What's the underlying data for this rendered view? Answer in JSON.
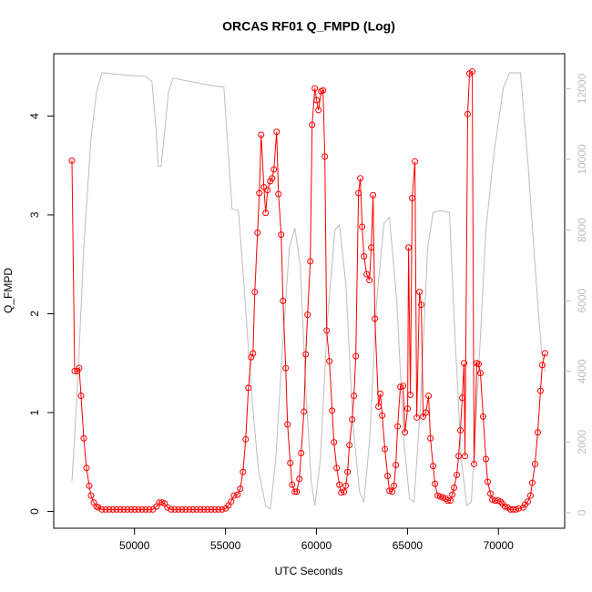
{
  "chart_data": {
    "type": "line",
    "title": "ORCAS RF01 Q_FMPD (Log)",
    "xlabel": "UTC Seconds",
    "ylabel": "Q_FMPD",
    "xlim": [
      45560,
      73640
    ],
    "ylim": [
      -0.17,
      4.63
    ],
    "y2lim": [
      -440,
      12990
    ],
    "xticks": [
      50000,
      55000,
      60000,
      65000,
      70000
    ],
    "yticks": [
      0,
      1,
      2,
      3,
      4
    ],
    "y2ticks": [
      0,
      2000,
      4000,
      6000,
      8000,
      10000,
      12000
    ],
    "y2tick_color": "#bebebe",
    "series": [
      {
        "color": "#bebebe",
        "axis": "y2",
        "markers": false,
        "x": [
          46560,
          46860,
          47210,
          47610,
          47910,
          48210,
          48860,
          49610,
          50610,
          50960,
          51160,
          51310,
          51460,
          51660,
          51860,
          52110,
          53110,
          54110,
          54910,
          55110,
          55360,
          55710,
          56010,
          56410,
          56810,
          57210,
          57460,
          57760,
          58110,
          58510,
          58810,
          59110,
          59410,
          59710,
          59910,
          60210,
          60610,
          61010,
          61260,
          61610,
          62010,
          62360,
          62610,
          62910,
          63310,
          63710,
          64010,
          64410,
          64810,
          65110,
          65360,
          65710,
          66110,
          66410,
          66810,
          67310,
          67610,
          67960,
          68260,
          68510,
          68910,
          69310,
          69760,
          70260,
          70610,
          71210,
          71610,
          72010,
          72360,
          72560
        ],
        "values": [
          900,
          3500,
          7500,
          10600,
          11900,
          12450,
          12420,
          12380,
          12350,
          12200,
          11000,
          9800,
          9800,
          10800,
          11900,
          12300,
          12200,
          12100,
          12050,
          10500,
          8600,
          8550,
          6500,
          3500,
          1200,
          200,
          100,
          1500,
          4500,
          7500,
          8050,
          7000,
          3500,
          900,
          200,
          1500,
          5500,
          8000,
          8150,
          6500,
          2500,
          600,
          300,
          2000,
          6000,
          8200,
          8350,
          6000,
          2000,
          400,
          300,
          3000,
          7500,
          8500,
          8550,
          8500,
          5000,
          1500,
          200,
          300,
          4000,
          8000,
          10200,
          12000,
          12450,
          12450,
          10000,
          7000,
          4600,
          4000
        ]
      },
      {
        "color": "#ff0000",
        "axis": "y",
        "markers": true,
        "x": [
          46560,
          46710,
          46860,
          46960,
          47060,
          47210,
          47360,
          47510,
          47610,
          47760,
          47910,
          48010,
          48210,
          48410,
          48610,
          48810,
          49010,
          49210,
          49410,
          49610,
          49810,
          50010,
          50210,
          50410,
          50610,
          50810,
          51010,
          51210,
          51360,
          51510,
          51660,
          51810,
          52010,
          52210,
          52410,
          52610,
          52810,
          53010,
          53210,
          53410,
          53610,
          53810,
          54010,
          54210,
          54410,
          54610,
          54810,
          55010,
          55160,
          55310,
          55460,
          55660,
          55810,
          55960,
          56110,
          56260,
          56410,
          56510,
          56610,
          56760,
          56860,
          56960,
          57110,
          57210,
          57310,
          57460,
          57560,
          57660,
          57810,
          57910,
          58060,
          58160,
          58310,
          58410,
          58560,
          58660,
          58810,
          58910,
          59060,
          59160,
          59310,
          59410,
          59510,
          59660,
          59760,
          59910,
          60010,
          60110,
          60260,
          60360,
          60460,
          60560,
          60710,
          60860,
          60960,
          61110,
          61260,
          61360,
          61510,
          61610,
          61710,
          61810,
          61960,
          62060,
          62160,
          62310,
          62410,
          62510,
          62610,
          62760,
          62910,
          63010,
          63110,
          63210,
          63410,
          63510,
          63610,
          63760,
          63910,
          64010,
          64160,
          64260,
          64360,
          64460,
          64610,
          64760,
          64860,
          65010,
          65060,
          65160,
          65260,
          65410,
          65510,
          65660,
          65760,
          65860,
          66010,
          66160,
          66260,
          66410,
          66510,
          66660,
          66810,
          66960,
          67110,
          67210,
          67360,
          67460,
          67560,
          67710,
          67810,
          67910,
          68010,
          68110,
          68160,
          68310,
          68410,
          68560,
          68660,
          68810,
          68910,
          69010,
          69160,
          69310,
          69410,
          69560,
          69660,
          69810,
          69960,
          70110,
          70210,
          70360,
          70510,
          70660,
          70810,
          70960,
          71110,
          71360,
          71460,
          71610,
          71760,
          71860,
          72010,
          72160,
          72310,
          72410,
          72560
        ],
        "values": [
          3.55,
          1.42,
          1.42,
          1.45,
          1.17,
          0.74,
          0.44,
          0.26,
          0.16,
          0.09,
          0.05,
          0.04,
          0.02,
          0.02,
          0.02,
          0.02,
          0.02,
          0.02,
          0.02,
          0.02,
          0.02,
          0.02,
          0.02,
          0.02,
          0.02,
          0.02,
          0.02,
          0.05,
          0.09,
          0.09,
          0.08,
          0.04,
          0.02,
          0.02,
          0.02,
          0.02,
          0.02,
          0.02,
          0.02,
          0.02,
          0.02,
          0.02,
          0.02,
          0.02,
          0.02,
          0.02,
          0.02,
          0.03,
          0.06,
          0.1,
          0.16,
          0.17,
          0.23,
          0.4,
          0.73,
          1.25,
          1.56,
          1.6,
          2.22,
          2.82,
          3.22,
          3.81,
          3.28,
          3.02,
          3.25,
          3.34,
          3.37,
          3.46,
          3.84,
          3.21,
          2.8,
          2.13,
          1.45,
          0.88,
          0.49,
          0.27,
          0.2,
          0.2,
          0.33,
          0.59,
          1.01,
          1.59,
          1.99,
          2.53,
          3.91,
          4.28,
          4.16,
          4.06,
          4.25,
          4.26,
          3.59,
          1.83,
          1.52,
          1.02,
          0.7,
          0.44,
          0.27,
          0.19,
          0.2,
          0.26,
          0.4,
          0.67,
          0.93,
          1.17,
          1.57,
          3.22,
          3.37,
          2.88,
          2.58,
          2.4,
          2.34,
          2.67,
          3.2,
          1.95,
          1.06,
          1.19,
          0.97,
          0.63,
          0.36,
          0.21,
          0.2,
          0.26,
          0.47,
          0.86,
          1.26,
          1.27,
          0.8,
          1.04,
          2.67,
          1.18,
          3.17,
          3.54,
          0.95,
          2.22,
          2.09,
          0.96,
          1.0,
          1.17,
          0.74,
          0.46,
          0.28,
          0.16,
          0.15,
          0.14,
          0.13,
          0.11,
          0.11,
          0.17,
          0.24,
          0.37,
          0.56,
          0.82,
          1.15,
          1.5,
          0.56,
          4.02,
          4.43,
          4.45,
          0.48,
          1.5,
          1.49,
          1.4,
          0.96,
          0.53,
          0.3,
          0.18,
          0.12,
          0.11,
          0.11,
          0.1,
          0.08,
          0.05,
          0.04,
          0.02,
          0.02,
          0.02,
          0.03,
          0.04,
          0.07,
          0.1,
          0.16,
          0.29,
          0.48,
          0.8,
          1.22,
          1.48,
          1.6
        ]
      }
    ]
  }
}
